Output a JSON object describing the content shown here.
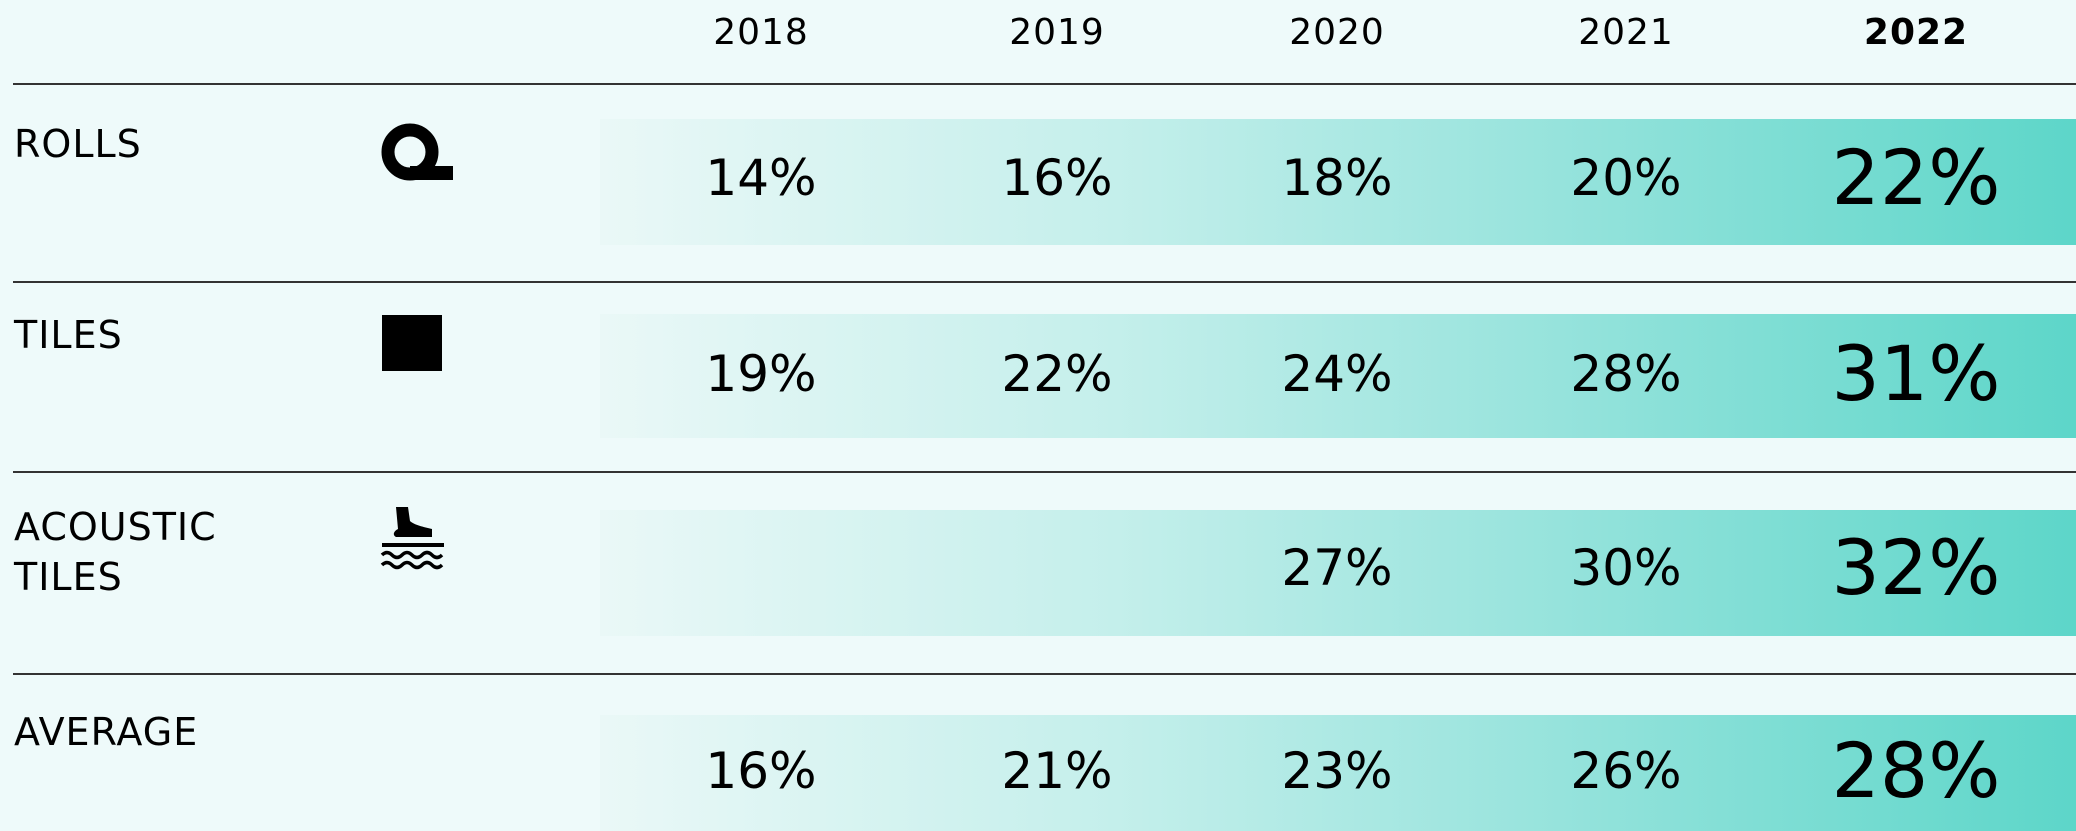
{
  "table": {
    "header": [
      "2018",
      "2019",
      "2020",
      "2021",
      "2022"
    ],
    "rows": [
      {
        "label": "ROLLS",
        "cells": [
          "14%",
          "16%",
          "18%",
          "20%",
          "22%"
        ]
      },
      {
        "label": "TILES",
        "cells": [
          "19%",
          "22%",
          "24%",
          "28%",
          "31%"
        ]
      },
      {
        "label": "ACOUSTIC TILES",
        "cells": [
          null,
          null,
          "27%",
          "30%",
          "32%"
        ]
      },
      {
        "label": "AVERAGE",
        "cells": [
          "16%",
          "21%",
          "23%",
          "26%",
          "28%"
        ]
      }
    ]
  }
}
